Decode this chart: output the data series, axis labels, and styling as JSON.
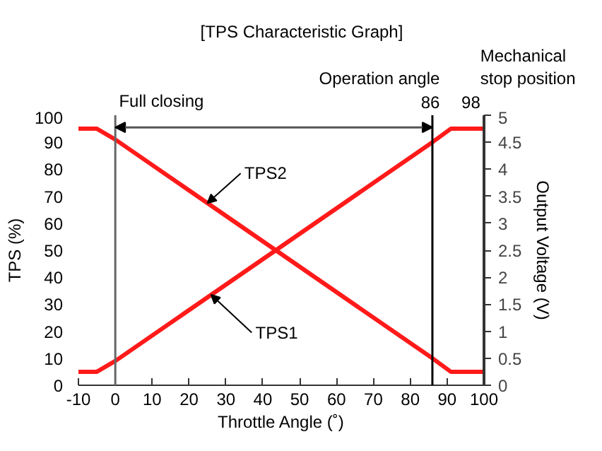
{
  "chart_data": {
    "type": "line",
    "title": "[TPS Characteristic Graph]",
    "xlabel": "Throttle Angle (˚)",
    "ylabel": "TPS (%)",
    "y2label": "Output Voltage (V)",
    "series": [
      {
        "name": "TPS1",
        "color": "#ff1a1a",
        "x": [
          -10,
          -5,
          0,
          86,
          91,
          100
        ],
        "values": [
          5,
          5,
          9,
          90,
          95,
          95
        ]
      },
      {
        "name": "TPS2",
        "color": "#ff1a1a",
        "x": [
          -10,
          -5,
          0,
          86,
          91,
          100
        ],
        "values": [
          95,
          95,
          91,
          10,
          5,
          5
        ]
      }
    ],
    "annotations": [
      "Full closing",
      "Operation angle",
      "86",
      "Mechanical",
      "stop position",
      "98"
    ],
    "ref_lines": [
      {
        "axis": "x",
        "value": 0,
        "color": "#666666"
      },
      {
        "axis": "x",
        "value": 86,
        "color": "#000000"
      }
    ],
    "xlim": [
      -10,
      100
    ],
    "xticks": [
      -10,
      0,
      10,
      20,
      30,
      40,
      50,
      60,
      70,
      80,
      90,
      100
    ],
    "ylim": [
      0,
      100
    ],
    "yticks": [
      0,
      10,
      20,
      30,
      40,
      50,
      60,
      70,
      80,
      90,
      100
    ],
    "y2lim": [
      0,
      5
    ],
    "y2ticks": [
      0,
      0.5,
      1,
      1.5,
      2,
      2.5,
      3,
      3.5,
      4,
      4.5,
      5
    ],
    "grid": false,
    "legend": false,
    "marker": "none",
    "line_style": "solid"
  }
}
